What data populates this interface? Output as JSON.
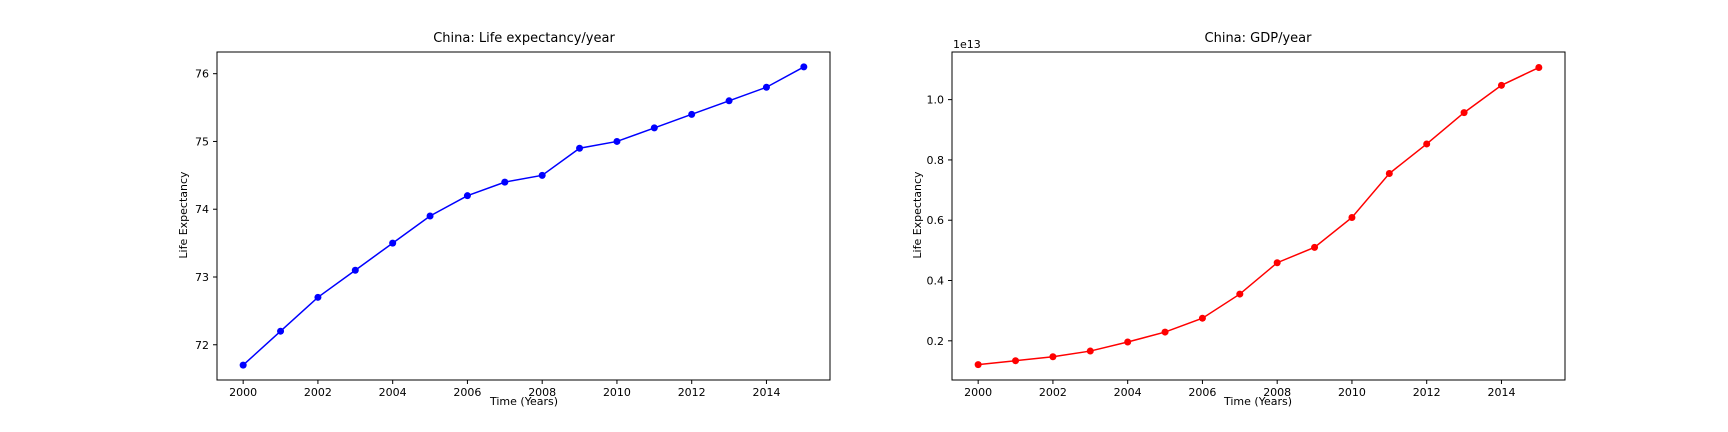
{
  "chart_data": [
    {
      "type": "line",
      "title": "China: Life expectancy/year",
      "xlabel": "Time (Years)",
      "ylabel": "Life Expectancy",
      "xlim": [
        1999.3,
        2015.7
      ],
      "ylim": [
        71.48,
        76.32
      ],
      "xticks": [
        2000,
        2002,
        2004,
        2006,
        2008,
        2010,
        2012,
        2014
      ],
      "yticks": [
        72,
        73,
        74,
        75,
        76
      ],
      "ytick_labels": [
        "72",
        "73",
        "74",
        "75",
        "76"
      ],
      "color": "#0000ff",
      "grid": false,
      "series": [
        {
          "x": [
            2000,
            2001,
            2002,
            2003,
            2004,
            2005,
            2006,
            2007,
            2008,
            2009,
            2010,
            2011,
            2012,
            2013,
            2014,
            2015
          ],
          "values": [
            71.7,
            72.2,
            72.7,
            73.1,
            73.5,
            73.9,
            74.2,
            74.4,
            74.5,
            74.9,
            75.0,
            75.2,
            75.4,
            75.6,
            75.8,
            76.1
          ]
        }
      ]
    },
    {
      "type": "line",
      "title": "China: GDP/year",
      "xlabel": "Time (Years)",
      "ylabel": "Life Expectancy",
      "offset_text": "1e13",
      "xlim": [
        1999.3,
        2015.7
      ],
      "ylim": [
        700000000000.0,
        11580000000000.0
      ],
      "xticks": [
        2000,
        2002,
        2004,
        2006,
        2008,
        2010,
        2012,
        2014
      ],
      "yticks": [
        2000000000000.0,
        4000000000000.0,
        6000000000000.0,
        8000000000000.0,
        10000000000000.0
      ],
      "ytick_labels": [
        "0.2",
        "0.4",
        "0.6",
        "0.8",
        "1.0"
      ],
      "color": "#ff0000",
      "grid": false,
      "series": [
        {
          "x": [
            2000,
            2001,
            2002,
            2003,
            2004,
            2005,
            2006,
            2007,
            2008,
            2009,
            2010,
            2011,
            2012,
            2013,
            2014,
            2015
          ],
          "values": [
            1210000000000.0,
            1340000000000.0,
            1470000000000.0,
            1660000000000.0,
            1960000000000.0,
            2290000000000.0,
            2750000000000.0,
            3550000000000.0,
            4590000000000.0,
            5100000000000.0,
            6090000000000.0,
            7550000000000.0,
            8530000000000.0,
            9570000000000.0,
            10475000000000.0,
            11065000000000.0
          ]
        }
      ]
    }
  ]
}
